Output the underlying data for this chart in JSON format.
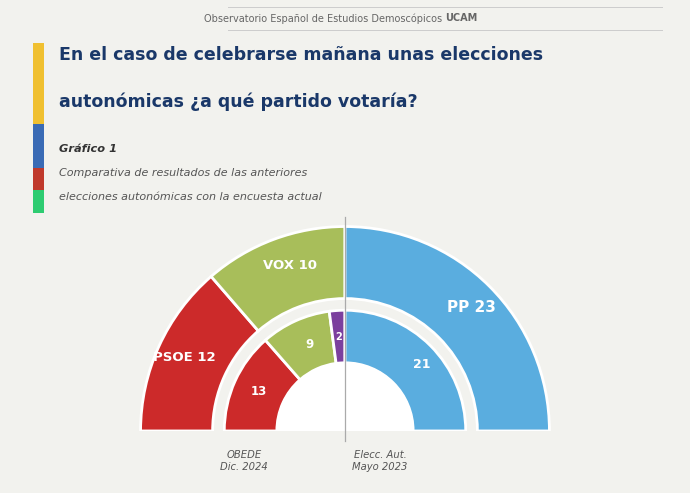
{
  "title_line1": "En el caso de celebrarse mañana unas elecciones",
  "title_line2": "autonómicas ¿a qué partido votaría?",
  "subtitle1": "Gráfico 1",
  "subtitle2": "Comparativa de resultados de las anteriores",
  "subtitle3": "elecciones autonómicas con la encuesta actual",
  "header_text": "Observatorio Español de Estudios Demoscópicos ",
  "header_bold": "UCAM",
  "label_left": "OBEDE\nDic. 2024",
  "label_right": "Elecc. Aut.\nMayo 2023",
  "bg_color": "#f2f2ee",
  "colors": {
    "red": "#cc2a2a",
    "green": "#a8be5a",
    "blue": "#5aaddf",
    "purple": "#7b3f9e"
  },
  "sidebar_colors": [
    "#f0c030",
    "#3a6bb5",
    "#c0392b",
    "#2ecc71"
  ],
  "header_bg": "#ffffff"
}
